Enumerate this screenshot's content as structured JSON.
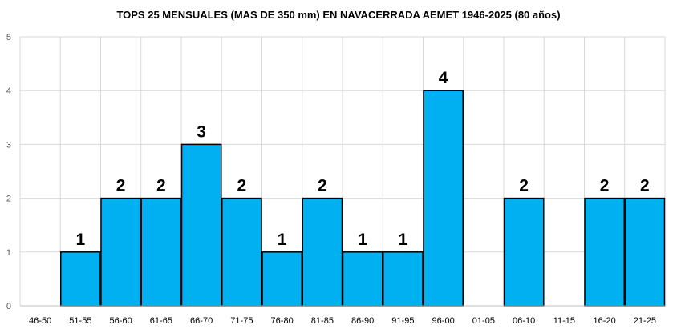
{
  "chart_data": {
    "type": "bar",
    "title": "TOPS 25 MENSUALES (MAS DE 350 mm) EN NAVACERRADA AEMET 1946-2025 (80 años)",
    "xlabel": "",
    "ylabel": "",
    "categories": [
      "46-50",
      "51-55",
      "56-60",
      "61-65",
      "66-70",
      "71-75",
      "76-80",
      "81-85",
      "86-90",
      "91-95",
      "96-00",
      "01-05",
      "06-10",
      "11-15",
      "16-20",
      "21-25"
    ],
    "values": [
      0,
      1,
      2,
      2,
      3,
      2,
      1,
      2,
      1,
      1,
      4,
      0,
      2,
      0,
      2,
      2
    ],
    "ylim": [
      0,
      5
    ],
    "yticks": [
      0,
      1,
      2,
      3,
      4,
      5
    ],
    "grid": true,
    "legend": "none",
    "bar_color": "#00B0F0",
    "bar_edge_color": "#000000",
    "data_labels_shown_for_nonzero": true
  }
}
